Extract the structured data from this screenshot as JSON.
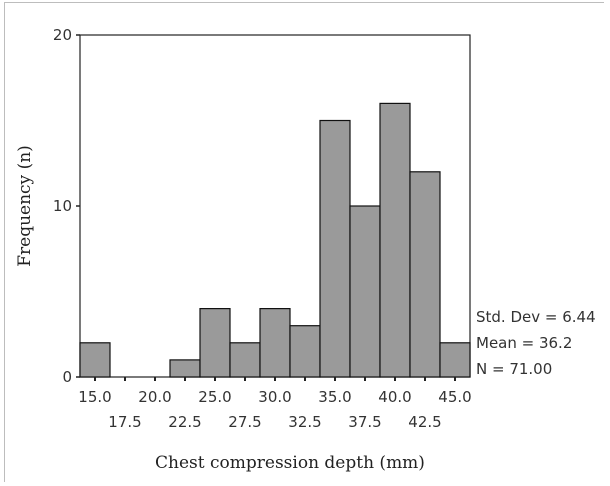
{
  "chart_data": {
    "type": "bar",
    "title": "",
    "xlabel": "Chest compression depth (mm)",
    "ylabel": "Frequency (n)",
    "bin_width": 2.5,
    "bin_centers": [
      15.0,
      17.5,
      20.0,
      22.5,
      25.0,
      27.5,
      30.0,
      32.5,
      35.0,
      37.5,
      40.0,
      42.5,
      45.0
    ],
    "values": [
      2,
      0,
      0,
      1,
      4,
      2,
      4,
      3,
      15,
      10,
      16,
      12,
      2
    ],
    "ylim": [
      0,
      20
    ],
    "xlim": [
      13.75,
      46.25
    ],
    "y_ticks": [
      "0",
      "10",
      "20"
    ],
    "x_ticks_upper": [
      "15.0",
      "20.0",
      "25.0",
      "30.0",
      "35.0",
      "40.0",
      "45.0"
    ],
    "x_ticks_lower": [
      "17.5",
      "22.5",
      "27.5",
      "32.5",
      "37.5",
      "42.5"
    ],
    "bar_color": "#9a9a9a",
    "grid": false,
    "stats": [
      "Std. Dev = 6.44",
      "Mean = 36.2",
      "N = 71.00"
    ]
  }
}
